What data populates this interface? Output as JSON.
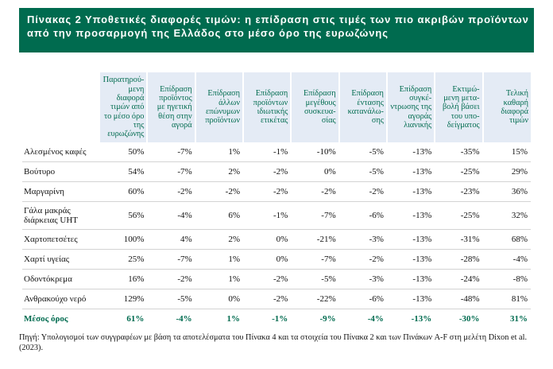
{
  "title": {
    "line1": "Πίνακας 2 Υποθετικές διαφορές τιμών: η επίδραση στις τιμές των πιο ακριβών προϊόντων",
    "line2": "από την προσαρμογή της Ελλάδος στο μέσο όρο της ευρωζώνης"
  },
  "table": {
    "headers": [
      "",
      "Παρατηρού-μενη διαφορά τιμών από το μέσο όρο της ευρωζώνης",
      "Επίδραση προϊόντος με ηγετική θέση στην αγορά",
      "Επίδραση άλλων επώνυμων προϊόντων",
      "Επίδραση προϊόντων ιδιωτικής ετικέτας",
      "Επίδραση μεγέθους συσκευα-σίας",
      "Επίδραση έντασης κατανάλω-σης",
      "Επίδραση συγκέ-ντρωσης της αγοράς λιανικής",
      "Εκτιμώ-μενη μετα-βολή βάσει του υπο-δείγματος",
      "Τελική καθαρή διαφορά τιμών"
    ],
    "rows": [
      {
        "label": "Αλεσμένος καφές",
        "values": [
          "50%",
          "-7%",
          "1%",
          "-1%",
          "-10%",
          "-5%",
          "-13%",
          "-35%",
          "15%"
        ]
      },
      {
        "label": "Βούτυρο",
        "values": [
          "54%",
          "-7%",
          "2%",
          "-2%",
          "0%",
          "-5%",
          "-13%",
          "-25%",
          "29%"
        ]
      },
      {
        "label": "Μαργαρίνη",
        "values": [
          "60%",
          "-2%",
          "-2%",
          "-2%",
          "-2%",
          "-2%",
          "-13%",
          "-23%",
          "36%"
        ]
      },
      {
        "label": "Γάλα μακράς διάρκειας UHT",
        "values": [
          "56%",
          "-4%",
          "6%",
          "-1%",
          "-7%",
          "-6%",
          "-13%",
          "-25%",
          "32%"
        ]
      },
      {
        "label": "Χαρτοπετσέτες",
        "values": [
          "100%",
          "4%",
          "2%",
          "0%",
          "-21%",
          "-3%",
          "-13%",
          "-31%",
          "68%"
        ]
      },
      {
        "label": "Χαρτί υγείας",
        "values": [
          "25%",
          "-7%",
          "1%",
          "0%",
          "-7%",
          "-2%",
          "-13%",
          "-28%",
          "-4%"
        ]
      },
      {
        "label": "Οδοντόκρεμα",
        "values": [
          "16%",
          "-2%",
          "1%",
          "-2%",
          "-5%",
          "-3%",
          "-13%",
          "-24%",
          "-8%"
        ]
      },
      {
        "label": "Ανθρακούχο νερό",
        "values": [
          "129%",
          "-5%",
          "0%",
          "-2%",
          "-22%",
          "-6%",
          "-13%",
          "-48%",
          "81%"
        ]
      }
    ],
    "average": {
      "label": "Μέσος όρος",
      "values": [
        "61%",
        "-4%",
        "1%",
        "-1%",
        "-9%",
        "-4%",
        "-13%",
        "-30%",
        "31%"
      ]
    }
  },
  "source": "Πηγή: Υπολογισμοί των συγγραφέων με βάση τα αποτελέσματα του Πίνακα 4 και τα στοιχεία του Πίνακα 2 και των Πινάκων A-F στη μελέτη Dixon et al. (2023).",
  "colors": {
    "accent": "#006b4f",
    "header_bg": "#e4ebf5",
    "title_text": "#ffffff"
  }
}
